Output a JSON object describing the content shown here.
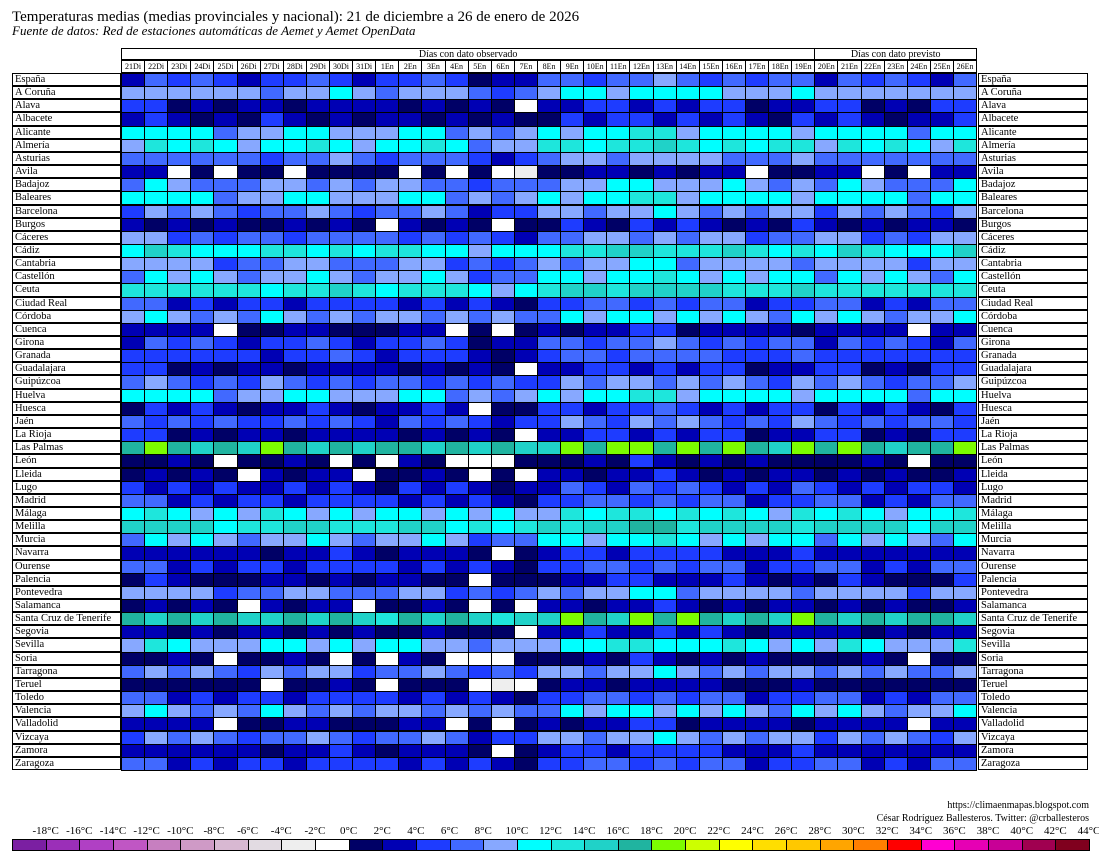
{
  "title": "Temperaturas medias (medias provinciales y nacional): 21 de diciembre a 26 de enero de 2026",
  "subtitle": "Fuente de datos: Red de estaciones automáticas de Aemet y Aemet OpenData",
  "credits": {
    "url": "https://climaenmapas.blogspot.com",
    "author": "César Rodríguez Ballesteros. Twitter: @crballesteros"
  },
  "chart_data": {
    "type": "heatmap",
    "title": "Temperaturas medias (medias provinciales y nacional): 21 de diciembre a 26 de enero de 2026",
    "sections": [
      {
        "label": "Días con dato observado",
        "n_days": 30
      },
      {
        "label": "Días con dato previsto",
        "n_days": 7
      }
    ],
    "days": [
      "21Di",
      "22Di",
      "23Di",
      "24Di",
      "25Di",
      "26Di",
      "27Di",
      "28Di",
      "29Di",
      "30Di",
      "31Di",
      "1En",
      "2En",
      "3En",
      "4En",
      "5En",
      "6En",
      "7En",
      "8En",
      "9En",
      "10En",
      "11En",
      "12En",
      "13En",
      "14En",
      "15En",
      "16En",
      "17En",
      "18En",
      "19En",
      "20En",
      "21En",
      "22En",
      "23En",
      "24En",
      "25En",
      "26En"
    ],
    "rows": [
      "España",
      "A Coruña",
      "Alava",
      "Albacete",
      "Alicante",
      "Almería",
      "Asturias",
      "Avila",
      "Badajoz",
      "Baleares",
      "Barcelona",
      "Burgos",
      "Cáceres",
      "Cádiz",
      "Cantabria",
      "Castellón",
      "Ceuta",
      "Ciudad Real",
      "Córdoba",
      "Cuenca",
      "Girona",
      "Granada",
      "Guadalajara",
      "Guipúzcoa",
      "Huelva",
      "Huesca",
      "Jaén",
      "La Rioja",
      "Las Palmas",
      "León",
      "Lleida",
      "Lugo",
      "Madrid",
      "Málaga",
      "Melilla",
      "Murcia",
      "Navarra",
      "Ourense",
      "Palencia",
      "Pontevedra",
      "Salamanca",
      "Santa Cruz de Tenerife",
      "Segovia",
      "Sevilla",
      "Soria",
      "Tarragona",
      "Teruel",
      "Toledo",
      "Valencia",
      "Valladolid",
      "Vizcaya",
      "Zamora",
      "Zaragoza"
    ],
    "legend": {
      "unit": "°C",
      "ticks": [
        "-18°C",
        "-16°C",
        "-14°C",
        "-12°C",
        "-10°C",
        "-8°C",
        "-6°C",
        "-4°C",
        "-2°C",
        "0°C",
        "2°C",
        "4°C",
        "6°C",
        "8°C",
        "10°C",
        "12°C",
        "14°C",
        "16°C",
        "18°C",
        "20°C",
        "22°C",
        "24°C",
        "26°C",
        "28°C",
        "30°C",
        "32°C",
        "34°C",
        "36°C",
        "38°C",
        "40°C",
        "42°C",
        "44°C"
      ],
      "colors": [
        "#7b1fa2",
        "#9b2fb8",
        "#b040c4",
        "#c056c4",
        "#c77fc0",
        "#cf9ac6",
        "#d8b8d2",
        "#e2dbe2",
        "#eeeeee",
        "#ffffff",
        "#000066",
        "#0000b4",
        "#1e3cff",
        "#4169ff",
        "#87a8ff",
        "#00ffff",
        "#1ee6dc",
        "#20d2c8",
        "#20b4a0",
        "#7cfc00",
        "#cdff00",
        "#ffff00",
        "#ffde00",
        "#ffc800",
        "#ffa500",
        "#ff7f00",
        "#ff0000",
        "#ff00d2",
        "#e600b4",
        "#c80096",
        "#a00050",
        "#80001e"
      ]
    },
    "base_offset_c": {
      "España": 5,
      "A Coruña": 9,
      "Alava": 3,
      "Albacete": 3,
      "Alicante": 10,
      "Almería": 11,
      "Asturias": 7,
      "Avila": 1,
      "Badajoz": 8,
      "Baleares": 10,
      "Barcelona": 7,
      "Burgos": 2,
      "Cáceres": 7,
      "Cádiz": 12,
      "Cantabria": 8,
      "Castellón": 9,
      "Ceuta": 13,
      "Ciudad Real": 5,
      "Córdoba": 9,
      "Cuenca": 2,
      "Girona": 5,
      "Granada": 5,
      "Guadalajara": 3,
      "Guipúzcoa": 7,
      "Huelva": 10,
      "Huesca": 3,
      "Jaén": 6,
      "La Rioja": 3,
      "Las Palmas": 17,
      "León": 1,
      "Lleida": 2,
      "Lugo": 4,
      "Madrid": 5,
      "Málaga": 11,
      "Melilla": 14,
      "Murcia": 9,
      "Navarra": 3,
      "Ourense": 5,
      "Palencia": 2,
      "Pontevedra": 8,
      "Salamanca": 2,
      "Santa Cruz de Tenerife": 16,
      "Segovia": 2,
      "Sevilla": 10,
      "Soria": 1,
      "Tarragona": 8,
      "Teruel": 1,
      "Toledo": 5,
      "Valencia": 9,
      "Valladolid": 2,
      "Vizcaya": 7,
      "Zamora": 3,
      "Zaragoza": 5
    },
    "day_anomaly_c": [
      0,
      1,
      0,
      0,
      -1,
      -1,
      0,
      0,
      0,
      0,
      -1,
      -1,
      0,
      0,
      -1,
      -2,
      -2,
      -2,
      0,
      1,
      1,
      1,
      2,
      2,
      1,
      1,
      1,
      0,
      0,
      1,
      0,
      1,
      0,
      0,
      -1,
      0,
      1
    ]
  }
}
